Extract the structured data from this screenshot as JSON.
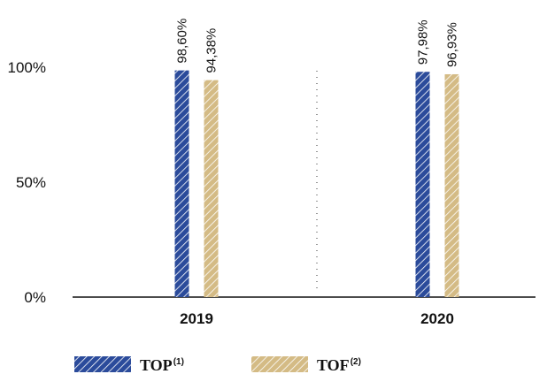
{
  "chart_data": {
    "type": "bar",
    "categories": [
      "2019",
      "2020"
    ],
    "series": [
      {
        "name": "TOP",
        "superscript": "(1)",
        "values": [
          98.6,
          97.98
        ],
        "labels": [
          "98,60%",
          "97,98%"
        ],
        "color": "#2b4b9b"
      },
      {
        "name": "TOF",
        "superscript": "(2)",
        "values": [
          94.38,
          96.93
        ],
        "labels": [
          "94,38%",
          "96,93%"
        ],
        "color": "#d4bb85"
      }
    ],
    "ylim": [
      0,
      100
    ],
    "yticks": [
      {
        "value": 0,
        "label": "0%"
      },
      {
        "value": 50,
        "label": "50%"
      },
      {
        "value": 100,
        "label": "100%"
      }
    ],
    "bar_pattern": "diagonal-hatch",
    "category_separator": "dotted",
    "legend_position": "bottom-left",
    "grid": false
  }
}
